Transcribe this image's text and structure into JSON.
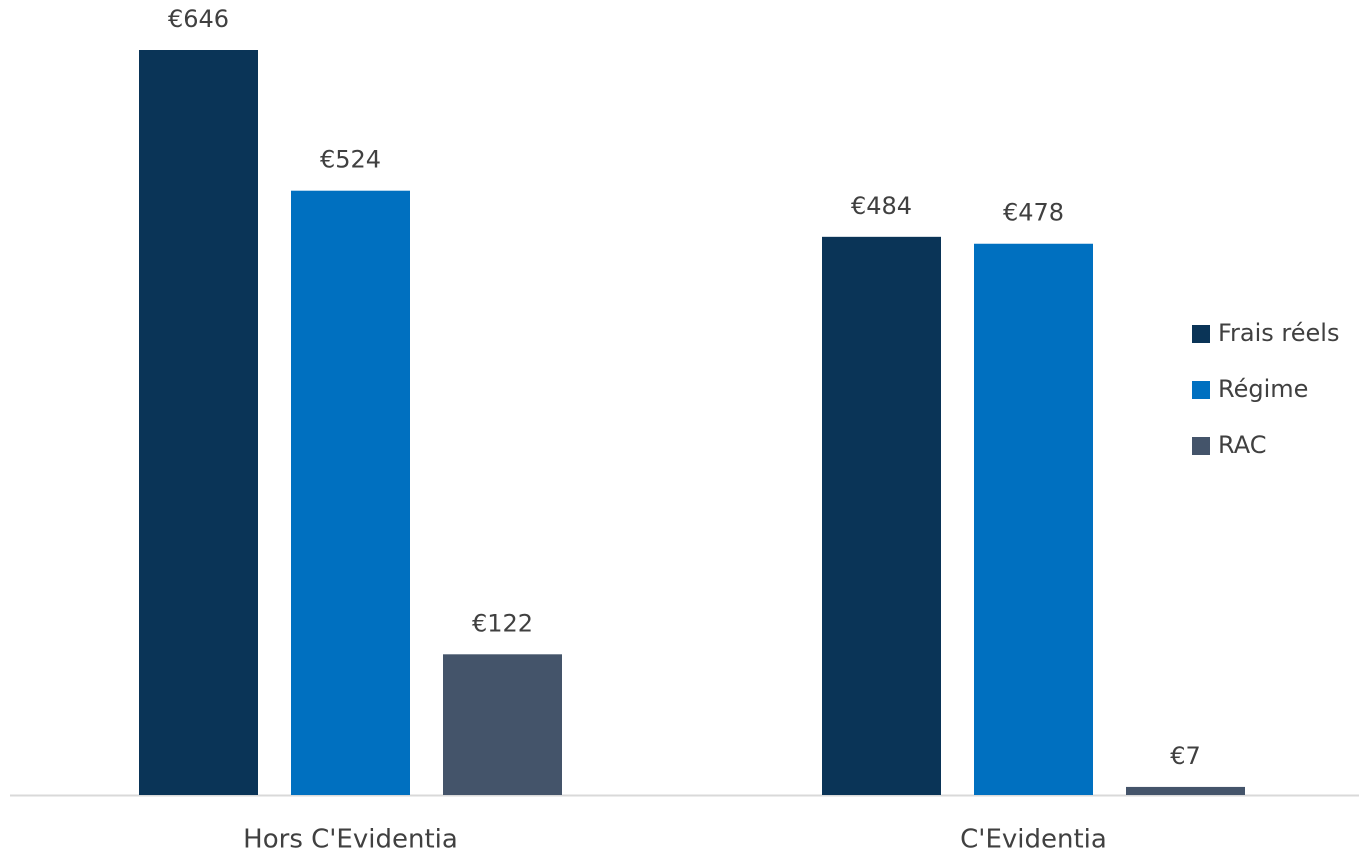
{
  "chart_data": {
    "type": "bar",
    "categories": [
      "Hors C'Evidentia",
      "C'Evidentia"
    ],
    "series": [
      {
        "name": "Frais réels",
        "color": "#0a3457",
        "values": [
          646,
          484
        ],
        "value_labels": [
          "€646",
          "€484"
        ]
      },
      {
        "name": "Régime",
        "color": "#0070c0",
        "values": [
          524,
          478
        ],
        "value_labels": [
          "€524",
          "€478"
        ]
      },
      {
        "name": "RAC",
        "color": "#44546a",
        "values": [
          122,
          7
        ],
        "value_labels": [
          "€122",
          "€7"
        ]
      }
    ],
    "legend": "right"
  }
}
